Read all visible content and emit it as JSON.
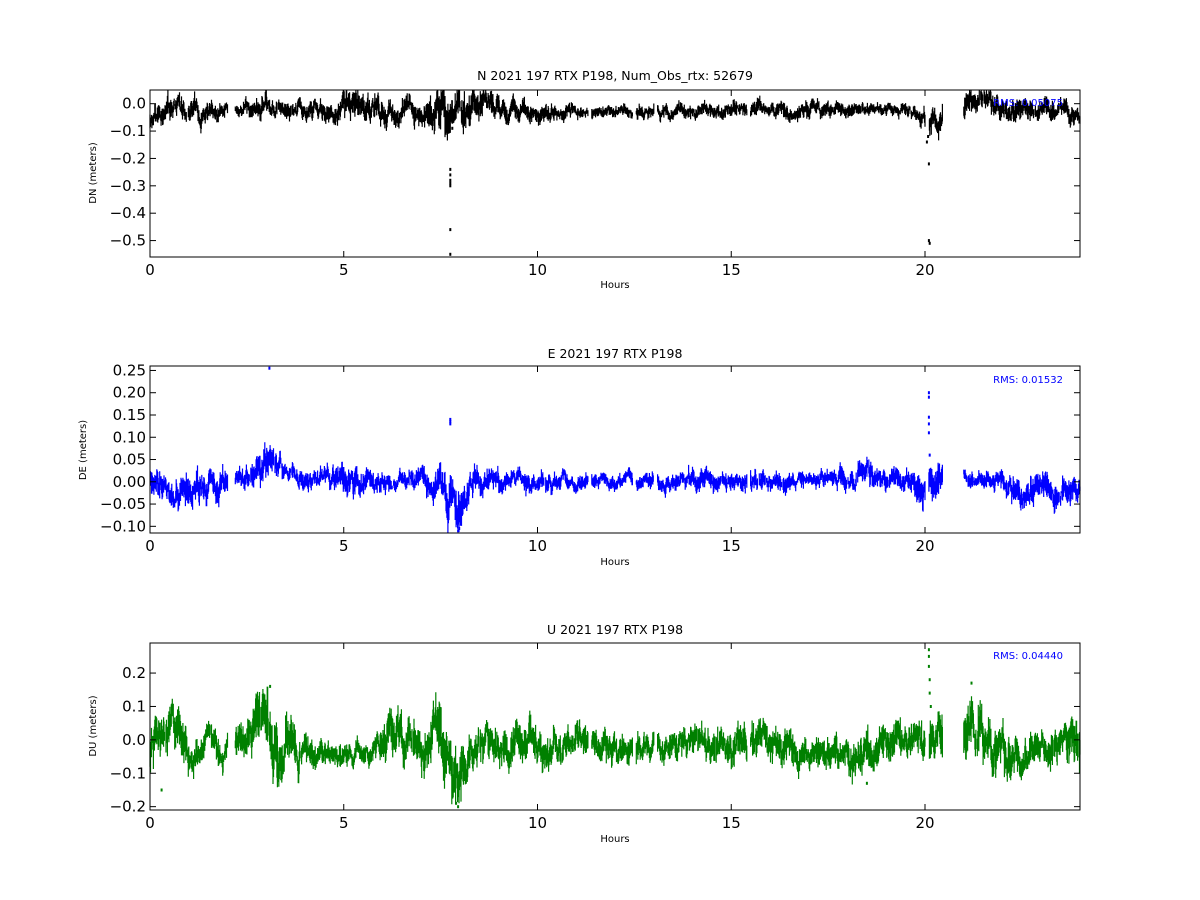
{
  "figure": {
    "background": "#ffffff"
  },
  "chart_data": [
    {
      "id": "n",
      "type": "scatter",
      "title": "N 2021 197 RTX  P198, Num_Obs_rtx: 52679",
      "xlabel": "Hours",
      "ylabel": "DN (meters)",
      "xlim": [
        0,
        24
      ],
      "ylim": [
        -0.56,
        0.05
      ],
      "xticks": [
        0,
        5,
        10,
        15,
        20
      ],
      "xtick_labels": [
        "0",
        "5",
        "10",
        "15",
        "20"
      ],
      "yticks": [
        0.0,
        -0.1,
        -0.2,
        -0.3,
        -0.4,
        -0.5
      ],
      "ytick_labels": [
        "0.0",
        "−0.1",
        "−0.2",
        "−0.3",
        "−0.4",
        "−0.5"
      ],
      "color": "#000000",
      "annotation": {
        "text": "RMS:  0.05075",
        "color": "#0000ff"
      },
      "baseline": -0.025,
      "spread": 0.02,
      "segments": [
        {
          "x": 0.0,
          "y": -0.06,
          "amp": 0.035
        },
        {
          "x": 0.5,
          "y": -0.025,
          "amp": 0.04
        },
        {
          "x": 1.0,
          "y": -0.03,
          "amp": 0.04
        },
        {
          "x": 2.2,
          "y": -0.025,
          "amp": 0.02
        },
        {
          "x": 3.0,
          "y": -0.01,
          "amp": 0.04
        },
        {
          "x": 3.5,
          "y": -0.025,
          "amp": 0.03
        },
        {
          "x": 4.5,
          "y": -0.025,
          "amp": 0.03
        },
        {
          "x": 5.2,
          "y": -0.03,
          "amp": 0.05
        },
        {
          "x": 6.0,
          "y": -0.03,
          "amp": 0.04
        },
        {
          "x": 7.0,
          "y": -0.03,
          "amp": 0.04
        },
        {
          "x": 7.5,
          "y": -0.03,
          "amp": 0.07
        },
        {
          "x": 8.0,
          "y": -0.02,
          "amp": 0.07
        },
        {
          "x": 8.5,
          "y": -0.02,
          "amp": 0.05
        },
        {
          "x": 9.0,
          "y": -0.02,
          "amp": 0.035
        },
        {
          "x": 10.0,
          "y": -0.03,
          "amp": 0.03
        },
        {
          "x": 11.0,
          "y": -0.025,
          "amp": 0.02
        },
        {
          "x": 12.5,
          "y": -0.025,
          "amp": 0.02
        },
        {
          "x": 14.0,
          "y": -0.025,
          "amp": 0.025
        },
        {
          "x": 15.5,
          "y": -0.02,
          "amp": 0.025
        },
        {
          "x": 17.0,
          "y": -0.015,
          "amp": 0.03
        },
        {
          "x": 18.0,
          "y": -0.02,
          "amp": 0.02
        },
        {
          "x": 19.5,
          "y": -0.02,
          "amp": 0.02
        },
        {
          "x": 20.2,
          "y": -0.06,
          "amp": 0.04
        },
        {
          "x": 21.0,
          "y": -0.01,
          "amp": 0.04
        },
        {
          "x": 22.0,
          "y": -0.02,
          "amp": 0.04
        },
        {
          "x": 23.0,
          "y": -0.035,
          "amp": 0.035
        },
        {
          "x": 24.0,
          "y": -0.04,
          "amp": 0.03
        }
      ],
      "gaps": [
        [
          2.0,
          2.2
        ],
        [
          11.3,
          11.4
        ],
        [
          12.45,
          12.55
        ],
        [
          13.0,
          13.1
        ],
        [
          15.4,
          15.5
        ],
        [
          20.0,
          20.1
        ],
        [
          20.45,
          21.0
        ]
      ],
      "outliers": [
        {
          "x": 7.75,
          "y": -0.24
        },
        {
          "x": 7.75,
          "y": -0.26
        },
        {
          "x": 7.75,
          "y": -0.28
        },
        {
          "x": 7.75,
          "y": -0.29
        },
        {
          "x": 7.75,
          "y": -0.3
        },
        {
          "x": 7.75,
          "y": -0.46
        },
        {
          "x": 7.75,
          "y": -0.55
        },
        {
          "x": 7.7,
          "y": -0.1
        },
        {
          "x": 7.8,
          "y": -0.09
        },
        {
          "x": 20.1,
          "y": -0.22
        },
        {
          "x": 20.1,
          "y": -0.5
        },
        {
          "x": 20.12,
          "y": -0.51
        },
        {
          "x": 20.05,
          "y": -0.14
        },
        {
          "x": 20.08,
          "y": -0.12
        }
      ]
    },
    {
      "id": "e",
      "type": "scatter",
      "title": "E 2021 197 RTX  P198",
      "xlabel": "Hours",
      "ylabel": "DE (meters)",
      "xlim": [
        0,
        24
      ],
      "ylim": [
        -0.115,
        0.26
      ],
      "xticks": [
        0,
        5,
        10,
        15,
        20
      ],
      "xtick_labels": [
        "0",
        "5",
        "10",
        "15",
        "20"
      ],
      "yticks": [
        0.25,
        0.2,
        0.15,
        0.1,
        0.05,
        0.0,
        -0.05,
        -0.1
      ],
      "ytick_labels": [
        "0.25",
        "0.20",
        "0.15",
        "0.10",
        "0.05",
        "0.00",
        "−0.05",
        "−0.10"
      ],
      "color": "#0000ff",
      "annotation": {
        "text": "RMS:  0.01532",
        "color": "#0000ff"
      },
      "baseline": 0.0,
      "spread": 0.018,
      "segments": [
        {
          "x": 0.0,
          "y": 0.01,
          "amp": 0.03
        },
        {
          "x": 0.5,
          "y": -0.02,
          "amp": 0.03
        },
        {
          "x": 1.0,
          "y": -0.005,
          "amp": 0.035
        },
        {
          "x": 1.6,
          "y": 0.0,
          "amp": 0.03
        },
        {
          "x": 2.2,
          "y": 0.0,
          "amp": 0.015
        },
        {
          "x": 3.0,
          "y": 0.03,
          "amp": 0.035
        },
        {
          "x": 3.5,
          "y": 0.01,
          "amp": 0.02
        },
        {
          "x": 4.5,
          "y": 0.005,
          "amp": 0.02
        },
        {
          "x": 5.0,
          "y": 0.015,
          "amp": 0.03
        },
        {
          "x": 5.7,
          "y": 0.005,
          "amp": 0.025
        },
        {
          "x": 6.5,
          "y": 0.0,
          "amp": 0.015
        },
        {
          "x": 7.5,
          "y": 0.0,
          "amp": 0.03
        },
        {
          "x": 7.9,
          "y": -0.06,
          "amp": 0.05
        },
        {
          "x": 8.2,
          "y": -0.005,
          "amp": 0.03
        },
        {
          "x": 9.0,
          "y": -0.005,
          "amp": 0.02
        },
        {
          "x": 10.0,
          "y": 0.005,
          "amp": 0.02
        },
        {
          "x": 11.0,
          "y": 0.0,
          "amp": 0.015
        },
        {
          "x": 12.5,
          "y": 0.0,
          "amp": 0.015
        },
        {
          "x": 14.0,
          "y": 0.005,
          "amp": 0.02
        },
        {
          "x": 15.5,
          "y": 0.005,
          "amp": 0.02
        },
        {
          "x": 17.0,
          "y": 0.0,
          "amp": 0.015
        },
        {
          "x": 18.5,
          "y": 0.01,
          "amp": 0.025
        },
        {
          "x": 19.5,
          "y": 0.005,
          "amp": 0.02
        },
        {
          "x": 20.2,
          "y": 0.01,
          "amp": 0.04
        },
        {
          "x": 21.0,
          "y": 0.005,
          "amp": 0.015
        },
        {
          "x": 22.0,
          "y": 0.0,
          "amp": 0.02
        },
        {
          "x": 22.6,
          "y": -0.03,
          "amp": 0.03
        },
        {
          "x": 23.5,
          "y": -0.01,
          "amp": 0.03
        },
        {
          "x": 24.0,
          "y": -0.015,
          "amp": 0.025
        }
      ],
      "gaps": [
        [
          2.0,
          2.2
        ],
        [
          11.3,
          11.4
        ],
        [
          12.45,
          12.55
        ],
        [
          13.0,
          13.1
        ],
        [
          15.4,
          15.5
        ],
        [
          20.0,
          20.1
        ],
        [
          20.45,
          21.0
        ]
      ],
      "outliers": [
        {
          "x": 3.08,
          "y": 0.255
        },
        {
          "x": 7.75,
          "y": 0.13
        },
        {
          "x": 7.75,
          "y": 0.135
        },
        {
          "x": 7.75,
          "y": 0.14
        },
        {
          "x": 20.1,
          "y": 0.19
        },
        {
          "x": 20.1,
          "y": 0.2
        },
        {
          "x": 20.1,
          "y": 0.11
        },
        {
          "x": 20.1,
          "y": 0.13
        },
        {
          "x": 20.1,
          "y": 0.145
        },
        {
          "x": 20.12,
          "y": 0.06
        },
        {
          "x": 7.95,
          "y": -0.11
        },
        {
          "x": 7.98,
          "y": -0.105
        }
      ]
    },
    {
      "id": "u",
      "type": "scatter",
      "title": "U 2021 197 RTX  P198",
      "xlabel": "Hours",
      "ylabel": "DU (meters)",
      "xlim": [
        0,
        24
      ],
      "ylim": [
        -0.21,
        0.29
      ],
      "xticks": [
        0,
        5,
        10,
        15,
        20
      ],
      "xtick_labels": [
        "0",
        "5",
        "10",
        "15",
        "20"
      ],
      "yticks": [
        0.2,
        0.1,
        0.0,
        -0.1,
        -0.2
      ],
      "ytick_labels": [
        "0.2",
        "0.1",
        "0.0",
        "−0.1",
        "−0.2"
      ],
      "color": "#008000",
      "annotation": {
        "text": "RMS:  0.04440",
        "color": "#0000ff"
      },
      "baseline": -0.02,
      "spread": 0.04,
      "segments": [
        {
          "x": 0.0,
          "y": -0.02,
          "amp": 0.05
        },
        {
          "x": 0.5,
          "y": 0.04,
          "amp": 0.07
        },
        {
          "x": 1.0,
          "y": -0.03,
          "amp": 0.05
        },
        {
          "x": 1.5,
          "y": -0.02,
          "amp": 0.04
        },
        {
          "x": 2.2,
          "y": -0.03,
          "amp": 0.04
        },
        {
          "x": 2.5,
          "y": 0.0,
          "amp": 0.05
        },
        {
          "x": 3.0,
          "y": 0.07,
          "amp": 0.08
        },
        {
          "x": 3.4,
          "y": -0.08,
          "amp": 0.08
        },
        {
          "x": 4.0,
          "y": -0.03,
          "amp": 0.04
        },
        {
          "x": 5.0,
          "y": -0.05,
          "amp": 0.03
        },
        {
          "x": 5.7,
          "y": -0.04,
          "amp": 0.03
        },
        {
          "x": 6.2,
          "y": 0.02,
          "amp": 0.06
        },
        {
          "x": 7.0,
          "y": -0.02,
          "amp": 0.05
        },
        {
          "x": 7.5,
          "y": 0.0,
          "amp": 0.08
        },
        {
          "x": 7.9,
          "y": -0.12,
          "amp": 0.08
        },
        {
          "x": 8.3,
          "y": -0.02,
          "amp": 0.05
        },
        {
          "x": 9.0,
          "y": -0.03,
          "amp": 0.05
        },
        {
          "x": 9.5,
          "y": -0.02,
          "amp": 0.05
        },
        {
          "x": 10.0,
          "y": 0.0,
          "amp": 0.05
        },
        {
          "x": 11.0,
          "y": -0.01,
          "amp": 0.04
        },
        {
          "x": 12.5,
          "y": -0.03,
          "amp": 0.04
        },
        {
          "x": 14.0,
          "y": -0.01,
          "amp": 0.04
        },
        {
          "x": 15.5,
          "y": -0.01,
          "amp": 0.05
        },
        {
          "x": 17.0,
          "y": -0.03,
          "amp": 0.04
        },
        {
          "x": 18.5,
          "y": -0.04,
          "amp": 0.05
        },
        {
          "x": 19.5,
          "y": -0.01,
          "amp": 0.05
        },
        {
          "x": 20.2,
          "y": 0.0,
          "amp": 0.06
        },
        {
          "x": 21.0,
          "y": 0.07,
          "amp": 0.07
        },
        {
          "x": 21.5,
          "y": 0.02,
          "amp": 0.07
        },
        {
          "x": 22.0,
          "y": -0.03,
          "amp": 0.06
        },
        {
          "x": 23.0,
          "y": -0.03,
          "amp": 0.04
        },
        {
          "x": 24.0,
          "y": 0.0,
          "amp": 0.06
        }
      ],
      "gaps": [
        [
          2.0,
          2.2
        ],
        [
          11.3,
          11.4
        ],
        [
          12.45,
          12.55
        ],
        [
          13.0,
          13.1
        ],
        [
          15.4,
          15.5
        ],
        [
          20.0,
          20.1
        ],
        [
          20.45,
          21.0
        ]
      ],
      "outliers": [
        {
          "x": 20.1,
          "y": 0.27
        },
        {
          "x": 20.1,
          "y": 0.25
        },
        {
          "x": 20.1,
          "y": 0.22
        },
        {
          "x": 20.12,
          "y": 0.18
        },
        {
          "x": 20.12,
          "y": 0.14
        },
        {
          "x": 20.15,
          "y": 0.1
        },
        {
          "x": 7.95,
          "y": -0.2
        },
        {
          "x": 7.9,
          "y": -0.19
        },
        {
          "x": 3.1,
          "y": 0.16
        },
        {
          "x": 21.2,
          "y": 0.17
        },
        {
          "x": 0.3,
          "y": -0.15
        },
        {
          "x": 18.5,
          "y": -0.13
        }
      ]
    }
  ]
}
